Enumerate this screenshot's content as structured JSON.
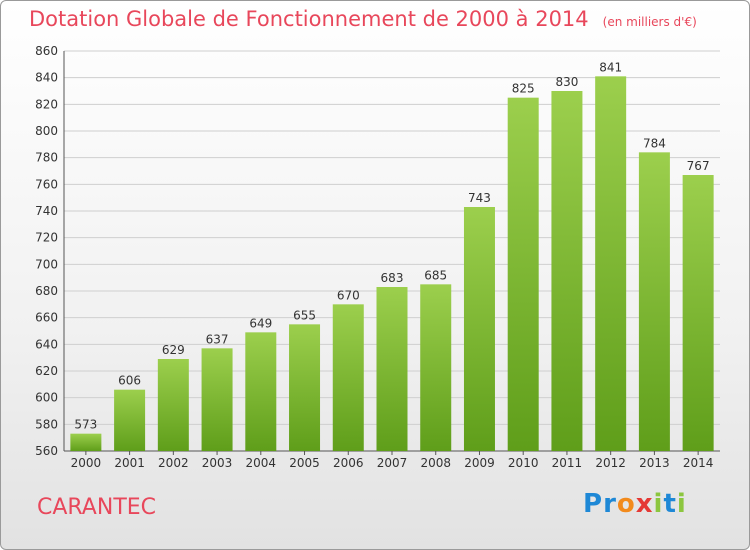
{
  "title": "Dotation Globale de Fonctionnement de 2000 à 2014",
  "unit_note": "(en milliers d'€)",
  "commune": "CARANTEC",
  "logo": {
    "text": "Proxiti",
    "letters": [
      {
        "ch": "P",
        "color": "#1e88d6"
      },
      {
        "ch": "r",
        "color": "#1e88d6"
      },
      {
        "ch": "o",
        "color": "#f28a1c"
      },
      {
        "ch": "x",
        "color": "#e53935"
      },
      {
        "ch": "i",
        "color": "#8cc63f"
      },
      {
        "ch": "t",
        "color": "#1e88d6"
      },
      {
        "ch": "i",
        "color": "#8cc63f"
      }
    ]
  },
  "colors": {
    "title": "#e8475b",
    "bar_light": "#9ccf4d",
    "bar_dark": "#5f9e1a",
    "grid": "#cfcfcf",
    "axis_text": "#333333"
  },
  "chart_data": {
    "type": "bar",
    "categories": [
      "2000",
      "2001",
      "2002",
      "2003",
      "2004",
      "2005",
      "2006",
      "2007",
      "2008",
      "2009",
      "2010",
      "2011",
      "2012",
      "2013",
      "2014"
    ],
    "values": [
      573,
      606,
      629,
      637,
      649,
      655,
      670,
      683,
      685,
      743,
      825,
      830,
      841,
      784,
      767
    ],
    "ylim": [
      560,
      860
    ],
    "yticks": [
      560,
      580,
      600,
      620,
      640,
      660,
      680,
      700,
      720,
      740,
      760,
      780,
      800,
      820,
      840,
      860
    ],
    "grid": true,
    "legend": "none"
  }
}
